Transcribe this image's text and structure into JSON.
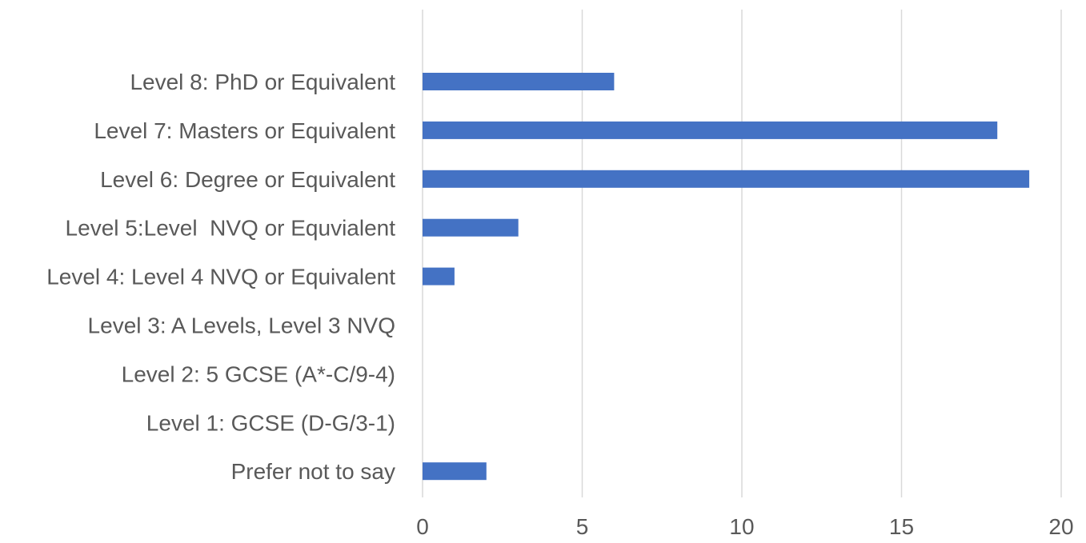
{
  "chart_data": {
    "type": "bar",
    "orientation": "horizontal",
    "categories": [
      "Level 8: PhD or Equivalent",
      "Level 7: Masters or Equivalent",
      "Level 6: Degree or Equivalent",
      "Level 5:Level  NVQ or Equvialent",
      "Level 4: Level 4 NVQ or Equivalent",
      "Level 3: A Levels, Level 3 NVQ",
      "Level 2: 5 GCSE (A*-C/9-4)",
      "Level 1: GCSE (D-G/3-1)",
      "Prefer not to say"
    ],
    "values": [
      6,
      18,
      19,
      3,
      1,
      0,
      0,
      0,
      2
    ],
    "xlim": [
      0,
      20
    ],
    "xticks": [
      "0",
      "5",
      "10",
      "15",
      "20"
    ],
    "title": "",
    "xlabel": "",
    "ylabel": "",
    "grid": "vertical",
    "legend": "none",
    "bar_color": "#4472c4",
    "grid_color": "#d9d9d9",
    "text_color": "#595959"
  }
}
